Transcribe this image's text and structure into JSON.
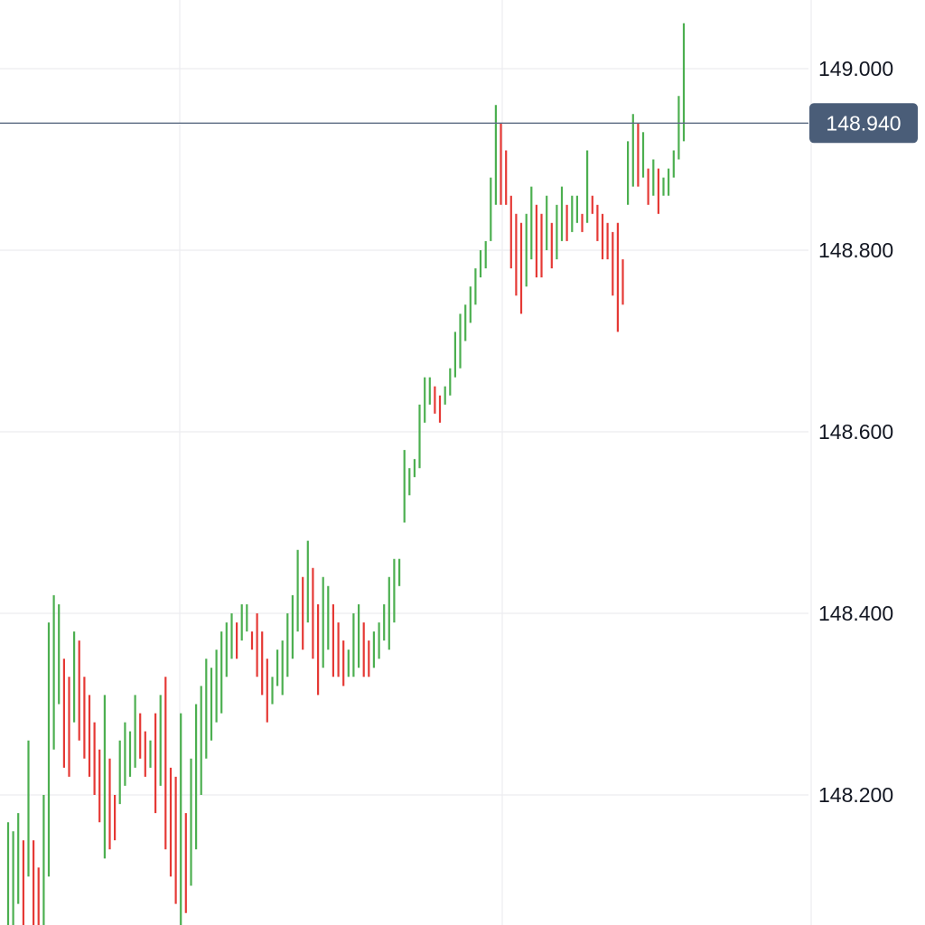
{
  "chart_data": {
    "type": "line",
    "chart_style": "candlestick-bars",
    "title": "",
    "xlabel": "",
    "ylabel": "",
    "ylim": [
      148.05,
      149.06
    ],
    "y_ticks": [
      "149.000",
      "148.800",
      "148.600",
      "148.400",
      "148.200"
    ],
    "y_tick_values": [
      149.0,
      148.8,
      148.6,
      148.4,
      148.2
    ],
    "grid": true,
    "current_price": {
      "value": 148.94,
      "label": "148.940"
    },
    "colors": {
      "up": "#4caf50",
      "down": "#e53935",
      "grid": "#ececef",
      "price_line": "#5b6b82",
      "price_tag": "#4a5d78",
      "text": "#131722"
    },
    "bars_note_excluded": true,
    "bars": [
      [
        148.17,
        148.02
      ],
      [
        148.16,
        148.05
      ],
      [
        148.18,
        148.08
      ],
      [
        148.15,
        148.01
      ],
      [
        148.26,
        148.11
      ],
      [
        148.15,
        148.05
      ],
      [
        148.12,
        148.03
      ],
      [
        148.2,
        148.03
      ],
      [
        148.39,
        148.11
      ],
      [
        148.42,
        148.25
      ],
      [
        148.41,
        148.3
      ],
      [
        148.35,
        148.23
      ],
      [
        148.33,
        148.22
      ],
      [
        148.38,
        148.28
      ],
      [
        148.37,
        148.26
      ],
      [
        148.33,
        148.24
      ],
      [
        148.31,
        148.22
      ],
      [
        148.28,
        148.2
      ],
      [
        148.25,
        148.17
      ],
      [
        148.31,
        148.13
      ],
      [
        148.24,
        148.14
      ],
      [
        148.2,
        148.15
      ],
      [
        148.26,
        148.19
      ],
      [
        148.28,
        148.21
      ],
      [
        148.27,
        148.22
      ],
      [
        148.31,
        148.23
      ],
      [
        148.29,
        148.24
      ],
      [
        148.27,
        148.22
      ],
      [
        148.26,
        148.23
      ],
      [
        148.29,
        148.18
      ],
      [
        148.31,
        148.21
      ],
      [
        148.33,
        148.14
      ],
      [
        148.23,
        148.11
      ],
      [
        148.22,
        148.08
      ],
      [
        148.29,
        148.04
      ],
      [
        148.18,
        148.07
      ],
      [
        148.24,
        148.1
      ],
      [
        148.3,
        148.14
      ],
      [
        148.32,
        148.2
      ],
      [
        148.35,
        148.24
      ],
      [
        148.34,
        148.26
      ],
      [
        148.36,
        148.28
      ],
      [
        148.38,
        148.29
      ],
      [
        148.39,
        148.33
      ],
      [
        148.4,
        148.35
      ],
      [
        148.39,
        148.35
      ],
      [
        148.41,
        148.37
      ],
      [
        148.41,
        148.38
      ],
      [
        148.38,
        148.36
      ],
      [
        148.4,
        148.33
      ],
      [
        148.38,
        148.31
      ],
      [
        148.35,
        148.28
      ],
      [
        148.33,
        148.3
      ],
      [
        148.36,
        148.32
      ],
      [
        148.37,
        148.31
      ],
      [
        148.4,
        148.33
      ],
      [
        148.42,
        148.35
      ],
      [
        148.47,
        148.38
      ],
      [
        148.44,
        148.36
      ],
      [
        148.48,
        148.39
      ],
      [
        148.45,
        148.35
      ],
      [
        148.41,
        148.31
      ],
      [
        148.44,
        148.34
      ],
      [
        148.43,
        148.36
      ],
      [
        148.41,
        148.33
      ],
      [
        148.39,
        148.33
      ],
      [
        148.37,
        148.32
      ],
      [
        148.36,
        148.33
      ],
      [
        148.4,
        148.33
      ],
      [
        148.41,
        148.34
      ],
      [
        148.39,
        148.33
      ],
      [
        148.37,
        148.33
      ],
      [
        148.38,
        148.34
      ],
      [
        148.39,
        148.35
      ],
      [
        148.41,
        148.37
      ],
      [
        148.44,
        148.36
      ],
      [
        148.46,
        148.39
      ],
      [
        148.46,
        148.43
      ],
      [
        148.58,
        148.5
      ],
      [
        148.56,
        148.53
      ],
      [
        148.57,
        148.55
      ],
      [
        148.63,
        148.56
      ],
      [
        148.66,
        148.61
      ],
      [
        148.66,
        148.63
      ],
      [
        148.65,
        148.62
      ],
      [
        148.64,
        148.61
      ],
      [
        148.65,
        148.63
      ],
      [
        148.67,
        148.64
      ],
      [
        148.71,
        148.66
      ],
      [
        148.73,
        148.67
      ],
      [
        148.74,
        148.7
      ],
      [
        148.76,
        148.72
      ],
      [
        148.78,
        148.74
      ],
      [
        148.8,
        148.77
      ],
      [
        148.81,
        148.78
      ],
      [
        148.88,
        148.81
      ],
      [
        148.96,
        148.85
      ],
      [
        148.94,
        148.85
      ],
      [
        148.91,
        148.85
      ],
      [
        148.86,
        148.78
      ],
      [
        148.84,
        148.75
      ],
      [
        148.83,
        148.73
      ],
      [
        148.84,
        148.76
      ],
      [
        148.87,
        148.79
      ],
      [
        148.85,
        148.77
      ],
      [
        148.84,
        148.77
      ],
      [
        148.86,
        148.8
      ],
      [
        148.83,
        148.78
      ],
      [
        148.85,
        148.79
      ],
      [
        148.87,
        148.81
      ],
      [
        148.85,
        148.81
      ],
      [
        148.86,
        148.82
      ],
      [
        148.86,
        148.83
      ],
      [
        148.84,
        148.82
      ],
      [
        148.91,
        148.83
      ],
      [
        148.86,
        148.84
      ],
      [
        148.85,
        148.81
      ],
      [
        148.84,
        148.79
      ],
      [
        148.83,
        148.79
      ],
      [
        148.82,
        148.75
      ],
      [
        148.83,
        148.71
      ],
      [
        148.79,
        148.74
      ],
      [
        148.92,
        148.85
      ],
      [
        148.95,
        148.87
      ],
      [
        148.94,
        148.87
      ],
      [
        148.93,
        148.88
      ],
      [
        148.89,
        148.85
      ],
      [
        148.9,
        148.86
      ],
      [
        148.89,
        148.84
      ],
      [
        148.88,
        148.86
      ],
      [
        148.89,
        148.86
      ],
      [
        148.91,
        148.88
      ],
      [
        148.97,
        148.9
      ],
      [
        149.05,
        148.92
      ]
    ]
  }
}
